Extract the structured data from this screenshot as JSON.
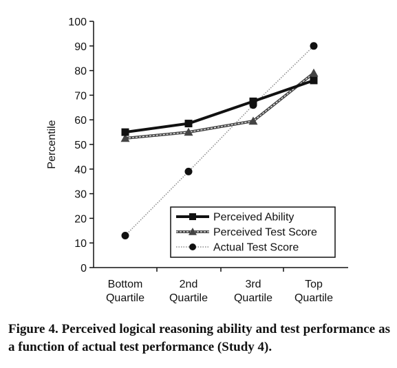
{
  "caption": "Figure 4. Perceived logical reasoning ability and test performance as a function of actual test performance (Study 4).",
  "chart_data": {
    "type": "line",
    "ylabel": "Percentile",
    "xlabel": "",
    "ylim": [
      0,
      100
    ],
    "yticks": [
      0,
      10,
      20,
      30,
      40,
      50,
      60,
      70,
      80,
      90,
      100
    ],
    "categories": [
      [
        "Bottom",
        "Quartile"
      ],
      [
        "2nd",
        "Quartile"
      ],
      [
        "3rd",
        "Quartile"
      ],
      [
        "Top",
        "Quartile"
      ]
    ],
    "grid": false,
    "legend_position": "bottom-right",
    "series": [
      {
        "name": "Perceived Ability",
        "values": [
          55,
          58.5,
          67.5,
          76
        ],
        "marker": "square",
        "color": "#111111",
        "style": "solid-thick"
      },
      {
        "name": "Perceived Test Score",
        "values": [
          52.5,
          55,
          59.5,
          79
        ],
        "marker": "triangle",
        "color": "#444444",
        "style": "double"
      },
      {
        "name": "Actual Test Score",
        "values": [
          13,
          39,
          66,
          90
        ],
        "marker": "circle",
        "color": "#111111",
        "style": "dotted"
      }
    ]
  }
}
